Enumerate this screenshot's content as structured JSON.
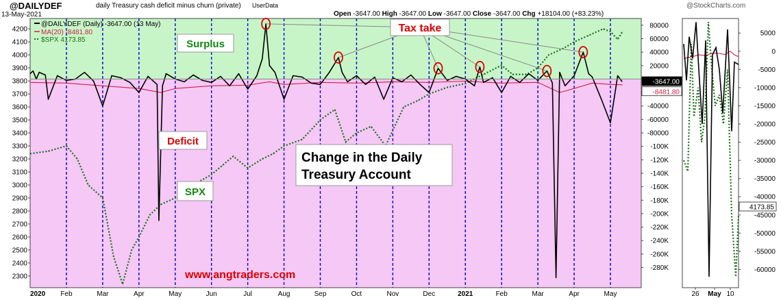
{
  "header": {
    "symbol": "@DAILYDEF",
    "subtitle": "daily Treasury cash deficit minus churn (private)",
    "userdata": "UserData",
    "date": "13-May-2021",
    "open_label": "Open",
    "open": "-3647.00",
    "high_label": "High",
    "high": "-3647.00",
    "low_label": "Low",
    "low": "-3647.00",
    "close_label": "Close",
    "close": "-3647.00",
    "chg_label": "Chg",
    "chg": "+18104.00 (+83.23%)",
    "credit": "@StockCharts.com"
  },
  "legend": {
    "line1": "@DAILYDEF (Daily) -3647.00 (13 May)",
    "line2": "MA(20) -8481.80",
    "line3": "$SPX 4173.85"
  },
  "annotations": {
    "surplus": "Surplus",
    "deficit": "Deficit",
    "spx": "SPX",
    "tax_take": "Tax take",
    "title_line1": "Change in the Daily",
    "title_line2": "Treasury Account",
    "website": "www.angtraders.com"
  },
  "colors": {
    "surplus_zone": "#c8f5c8",
    "deficit_zone": "#f5c8f5",
    "main_line": "#000000",
    "ma_line": "#cc2244",
    "spx_line": "#1a6e1a",
    "vgrid": "#0000cc",
    "annotation_red": "#dd0000",
    "annotation_green": "#118811"
  },
  "chart_data": {
    "type": "line",
    "left_axis": {
      "ylim": [
        2210,
        4280
      ],
      "ticks": [
        4200,
        4100,
        4000,
        3900,
        3800,
        3700,
        3600,
        3500,
        3400,
        3300,
        3200,
        3100,
        3000,
        2900,
        2800,
        2700,
        2600,
        2500,
        2400,
        2300
      ]
    },
    "right_axis": {
      "ylim": [
        -310000,
        90000
      ],
      "ticks": [
        80000,
        60000,
        40000,
        20000,
        0,
        -20000,
        -40000,
        -60000,
        -80000,
        -100000,
        -120000,
        -140000,
        -160000,
        -180000,
        -200000,
        -220000,
        -240000,
        -260000,
        -280000
      ],
      "tick_labels": [
        "80000",
        "60000",
        "40000",
        "20000",
        "0",
        "-20000",
        "-40000",
        "-60000",
        "-80000",
        "-100K",
        "-120K",
        "-140K",
        "-160K",
        "-180K",
        "-200K",
        "-220K",
        "-240K",
        "-260K",
        "-280K"
      ],
      "last_value_labels": [
        "-3647.00",
        "-8481.80"
      ]
    },
    "x_axis": {
      "labels": [
        "2020",
        "Feb",
        "Mar",
        "Apr",
        "May",
        "Jun",
        "Jul",
        "Aug",
        "Sep",
        "Oct",
        "Nov",
        "Dec",
        "2021",
        "Feb",
        "Mar",
        "Apr",
        "May"
      ]
    },
    "series": [
      {
        "name": "@DAILYDEF",
        "axis": "right",
        "points": [
          [
            0,
            8000
          ],
          [
            0.08,
            12000
          ],
          [
            0.17,
            0
          ],
          [
            0.25,
            10000
          ],
          [
            0.42,
            6000
          ],
          [
            0.5,
            -30000
          ],
          [
            0.75,
            5000
          ],
          [
            1,
            -2000
          ],
          [
            1.25,
            0
          ],
          [
            1.5,
            10000
          ],
          [
            1.75,
            -3000
          ],
          [
            2,
            -40000
          ],
          [
            2.25,
            5000
          ],
          [
            2.5,
            2000
          ],
          [
            2.75,
            -5000
          ],
          [
            3,
            -20000
          ],
          [
            3.25,
            4000
          ],
          [
            3.5,
            -8000
          ],
          [
            3.55,
            -210000
          ],
          [
            3.65,
            -10000
          ],
          [
            3.75,
            8000
          ],
          [
            4,
            0
          ],
          [
            4.25,
            -4000
          ],
          [
            4.5,
            6000
          ],
          [
            4.75,
            -2000
          ],
          [
            5,
            -5000
          ],
          [
            5.25,
            4000
          ],
          [
            5.5,
            -10000
          ],
          [
            5.75,
            8000
          ],
          [
            6,
            -15000
          ],
          [
            6.25,
            5000
          ],
          [
            6.4,
            30000
          ],
          [
            6.5,
            82000
          ],
          [
            6.6,
            20000
          ],
          [
            6.75,
            10000
          ],
          [
            7,
            -30000
          ],
          [
            7.25,
            5000
          ],
          [
            7.5,
            3000
          ],
          [
            7.75,
            -6000
          ],
          [
            8,
            -8000
          ],
          [
            8.25,
            10000
          ],
          [
            8.5,
            32000
          ],
          [
            8.6,
            10000
          ],
          [
            8.75,
            -4000
          ],
          [
            9,
            5000
          ],
          [
            9.25,
            -8000
          ],
          [
            9.5,
            3000
          ],
          [
            9.75,
            -30000
          ],
          [
            10,
            2000
          ],
          [
            10.25,
            -4000
          ],
          [
            10.5,
            6000
          ],
          [
            10.75,
            -8000
          ],
          [
            11,
            -20000
          ],
          [
            11.25,
            16000
          ],
          [
            11.5,
            -2000
          ],
          [
            11.75,
            4000
          ],
          [
            12,
            0
          ],
          [
            12.25,
            -10000
          ],
          [
            12.4,
            18000
          ],
          [
            12.5,
            -5000
          ],
          [
            12.75,
            2000
          ],
          [
            13,
            -20000
          ],
          [
            13.25,
            4000
          ],
          [
            13.5,
            -5000
          ],
          [
            13.75,
            8000
          ],
          [
            14,
            -2000
          ],
          [
            14.25,
            12000
          ],
          [
            14.4,
            -6000
          ],
          [
            14.5,
            -295000
          ],
          [
            14.6,
            10000
          ],
          [
            14.75,
            -10000
          ],
          [
            15,
            5000
          ],
          [
            15.25,
            40000
          ],
          [
            15.4,
            8000
          ],
          [
            15.5,
            3000
          ],
          [
            15.75,
            -30000
          ],
          [
            16,
            -65000
          ],
          [
            16.2,
            5000
          ],
          [
            16.32,
            -3647
          ]
        ]
      },
      {
        "name": "MA(20)",
        "axis": "right",
        "points": [
          [
            0,
            -5000
          ],
          [
            1,
            -6000
          ],
          [
            2,
            -10000
          ],
          [
            3,
            -14000
          ],
          [
            3.6,
            -20000
          ],
          [
            4,
            -14000
          ],
          [
            5,
            -10000
          ],
          [
            6,
            -9000
          ],
          [
            6.6,
            -4000
          ],
          [
            7,
            -8000
          ],
          [
            8,
            -5000
          ],
          [
            9,
            -6000
          ],
          [
            10,
            -4000
          ],
          [
            11,
            -5000
          ],
          [
            12,
            -3000
          ],
          [
            13,
            -6000
          ],
          [
            14,
            -5000
          ],
          [
            14.6,
            -20000
          ],
          [
            15,
            -14000
          ],
          [
            15.5,
            -6000
          ],
          [
            16,
            -8000
          ],
          [
            16.32,
            -8481.8
          ]
        ]
      },
      {
        "name": "$SPX",
        "axis": "left",
        "points": [
          [
            0,
            3240
          ],
          [
            0.5,
            3260
          ],
          [
            1,
            3300
          ],
          [
            1.3,
            3200
          ],
          [
            1.6,
            3000
          ],
          [
            2,
            2900
          ],
          [
            2.3,
            2450
          ],
          [
            2.55,
            2237
          ],
          [
            2.8,
            2500
          ],
          [
            3,
            2600
          ],
          [
            3.3,
            2770
          ],
          [
            3.6,
            2850
          ],
          [
            4,
            2900
          ],
          [
            4.5,
            3000
          ],
          [
            5,
            3080
          ],
          [
            5.3,
            3150
          ],
          [
            5.6,
            3220
          ],
          [
            6,
            3130
          ],
          [
            6.4,
            3200
          ],
          [
            6.7,
            3240
          ],
          [
            7,
            3300
          ],
          [
            7.5,
            3350
          ],
          [
            8,
            3500
          ],
          [
            8.4,
            3580
          ],
          [
            8.7,
            3330
          ],
          [
            9,
            3400
          ],
          [
            9.4,
            3450
          ],
          [
            9.8,
            3300
          ],
          [
            10,
            3420
          ],
          [
            10.3,
            3600
          ],
          [
            10.7,
            3650
          ],
          [
            11,
            3700
          ],
          [
            11.5,
            3750
          ],
          [
            12,
            3780
          ],
          [
            12.5,
            3850
          ],
          [
            13,
            3920
          ],
          [
            13.3,
            3850
          ],
          [
            13.7,
            3850
          ],
          [
            14,
            3900
          ],
          [
            14.3,
            4000
          ],
          [
            14.7,
            4050
          ],
          [
            15,
            4100
          ],
          [
            15.4,
            4150
          ],
          [
            15.8,
            4200
          ],
          [
            16,
            4180
          ],
          [
            16.2,
            4120
          ],
          [
            16.32,
            4173.85
          ]
        ]
      }
    ],
    "inset": {
      "x_labels": [
        "26",
        "May",
        "10"
      ],
      "ticks": [
        5000,
        0,
        -5000,
        -10000,
        -15000,
        -20000,
        -25000,
        -30000,
        -35000,
        -40000,
        -45000,
        -50000,
        -55000,
        -60000
      ],
      "last_value_label": "4173.85"
    }
  }
}
